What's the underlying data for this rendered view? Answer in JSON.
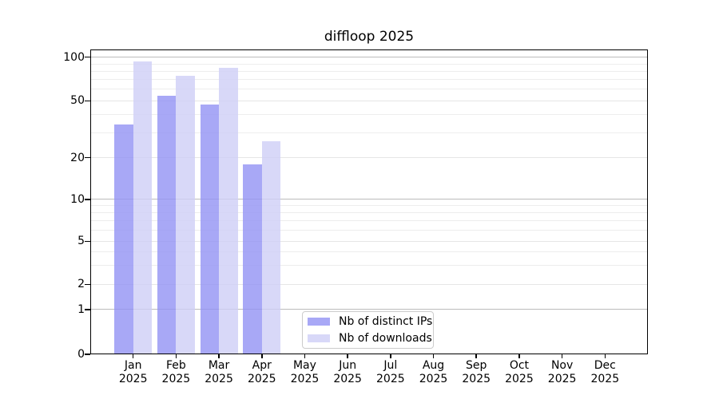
{
  "title": "diffloop 2025",
  "chart_data": {
    "type": "bar",
    "title": "diffloop 2025",
    "year": "2025",
    "categories": [
      "Jan",
      "Feb",
      "Mar",
      "Apr",
      "May",
      "Jun",
      "Jul",
      "Aug",
      "Sep",
      "Oct",
      "Nov",
      "Dec"
    ],
    "series": [
      {
        "name": "Nb of distinct IPs",
        "color": "#a8a8f6",
        "fill_rgba": "rgba(146,146,244,0.8)",
        "values": [
          34,
          54,
          47,
          18,
          0,
          0,
          0,
          0,
          0,
          0,
          0,
          0
        ]
      },
      {
        "name": "Nb of downloads",
        "color": "#d8d8f8",
        "fill_rgba": "rgba(206,206,246,0.8)",
        "values": [
          93,
          74,
          84,
          26,
          0,
          0,
          0,
          0,
          0,
          0,
          0,
          0
        ]
      }
    ],
    "y_axis": {
      "scale": "log",
      "ticks": [
        100,
        50,
        20,
        10,
        5,
        2,
        1,
        0
      ],
      "decade_ticks": [
        100,
        10,
        1
      ],
      "minor_gridlines": [
        90,
        80,
        70,
        60,
        40,
        30,
        9,
        8,
        7,
        6,
        4,
        3
      ],
      "range": [
        0,
        113
      ]
    },
    "grid": "horizontal",
    "legend_position": "lower-center"
  },
  "legend": {
    "items": [
      "Nb of distinct IPs",
      "Nb of downloads"
    ]
  }
}
